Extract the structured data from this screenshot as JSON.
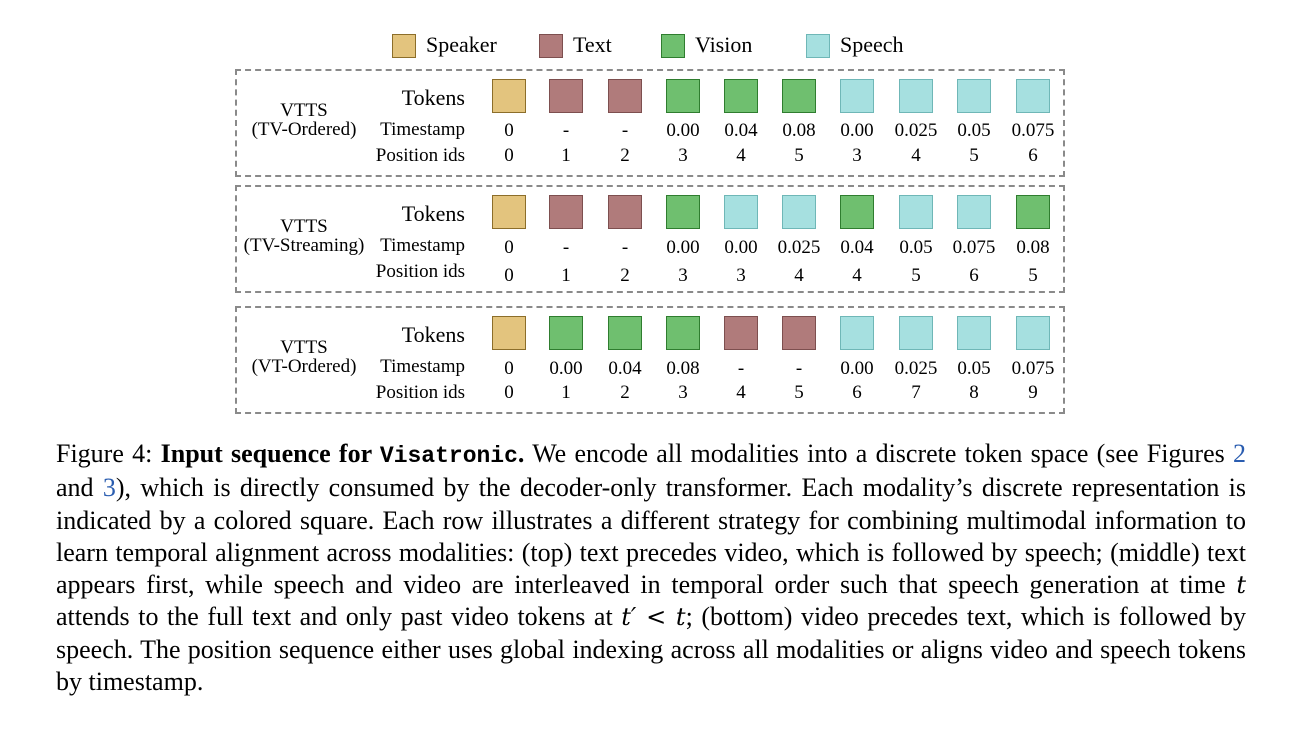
{
  "legend": [
    {
      "label": "Speaker",
      "color": "#e3c47e",
      "border": "#8c6e2a"
    },
    {
      "label": "Text",
      "color": "#b07b7b",
      "border": "#7d4f4f"
    },
    {
      "label": "Vision",
      "color": "#6fbf6f",
      "border": "#2f7d2f"
    },
    {
      "label": "Speech",
      "color": "#a6e0e0",
      "border": "#6fb7b7"
    }
  ],
  "row_labels": {
    "tokens": "Tokens",
    "timestamp": "Timestamp",
    "position": "Position ids"
  },
  "panels": [
    {
      "name_line1": "VTTS",
      "name_line2": "(TV-Ordered)",
      "tokens": [
        "speaker",
        "text",
        "text",
        "vision",
        "vision",
        "vision",
        "speech",
        "speech",
        "speech",
        "speech"
      ],
      "timestamps": [
        "0",
        "-",
        "-",
        "0.00",
        "0.04",
        "0.08",
        "0.00",
        "0.025",
        "0.05",
        "0.075"
      ],
      "positions": [
        "0",
        "1",
        "2",
        "3",
        "4",
        "5",
        "3",
        "4",
        "5",
        "6"
      ]
    },
    {
      "name_line1": "VTTS",
      "name_line2": "(TV-Streaming)",
      "tokens": [
        "speaker",
        "text",
        "text",
        "vision",
        "speech",
        "speech",
        "vision",
        "speech",
        "speech",
        "vision"
      ],
      "timestamps": [
        "0",
        "-",
        "-",
        "0.00",
        "0.00",
        "0.025",
        "0.04",
        "0.05",
        "0.075",
        "0.08"
      ],
      "positions": [
        "0",
        "1",
        "2",
        "3",
        "3",
        "4",
        "4",
        "5",
        "6",
        "5"
      ]
    },
    {
      "name_line1": "VTTS",
      "name_line2": "(VT-Ordered)",
      "tokens": [
        "speaker",
        "vision",
        "vision",
        "vision",
        "text",
        "text",
        "speech",
        "speech",
        "speech",
        "speech"
      ],
      "timestamps": [
        "0",
        "0.00",
        "0.04",
        "0.08",
        "-",
        "-",
        "0.00",
        "0.025",
        "0.05",
        "0.075"
      ],
      "positions": [
        "0",
        "1",
        "2",
        "3",
        "4",
        "5",
        "6",
        "7",
        "8",
        "9"
      ]
    }
  ],
  "token_colors": {
    "speaker": {
      "fill": "#e3c47e",
      "border": "#8c6e2a"
    },
    "text": {
      "fill": "#b07b7b",
      "border": "#7d4f4f"
    },
    "vision": {
      "fill": "#6fbf6f",
      "border": "#2f7d2f"
    },
    "speech": {
      "fill": "#a6e0e0",
      "border": "#6fb7b7"
    }
  },
  "caption": {
    "fig_label": "Figure 4: ",
    "bold_title": "Input sequence for ",
    "mono_name": "Visatronic",
    "bold_end": ".",
    "s1": " We encode all modalities into a discrete token space (see Figures ",
    "ref1": "2",
    "s2": " and ",
    "ref2": "3",
    "s3": "), which is directly consumed by the decoder-only transformer. Each modality’s discrete representation is indicated by a colored square. Each row illustrates a different strategy for combining multimodal information to learn temporal alignment across modalities: (top) text precedes video, which is followed by speech; (middle) text appears first, while speech and video are interleaved in temporal order such that speech generation at time ",
    "var_t": "t",
    "s4": " attends to the full text and only past video tokens at ",
    "var_tprime": "t′ < t",
    "s5": "; (bottom) video precedes text, which is followed by speech. The position sequence either uses global indexing across all modalities or aligns video and speech tokens by timestamp."
  }
}
